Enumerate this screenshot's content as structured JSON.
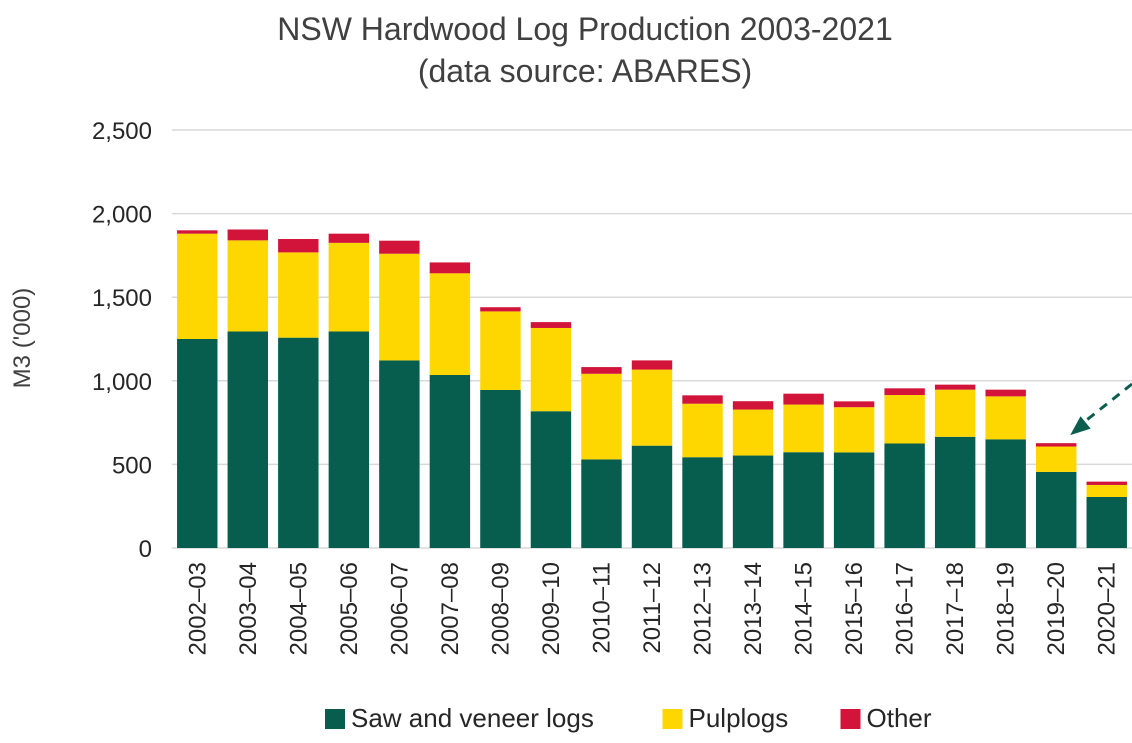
{
  "chart_data": {
    "type": "bar",
    "stacked": true,
    "title": "NSW Hardwood Log Production 2003-2021",
    "subtitle": "(data source: ABARES)",
    "xlabel": "",
    "ylabel": "M3 ('000)",
    "ylim": [
      0,
      2500
    ],
    "yticks": [
      0,
      500,
      1000,
      1500,
      2000,
      2500
    ],
    "ytick_labels": [
      "0",
      "500",
      "1,000",
      "1,500",
      "2,000",
      "2,500"
    ],
    "grid": true,
    "legend_position": "bottom",
    "categories": [
      "2002–03",
      "2003–04",
      "2004–05",
      "2005–06",
      "2006–07",
      "2007–08",
      "2008–09",
      "2009–10",
      "2010–11",
      "2011–12",
      "2012–13",
      "2013–14",
      "2014–15",
      "2015–16",
      "2016–17",
      "2017–18",
      "2018–19",
      "2019–20",
      "2020–21"
    ],
    "series": [
      {
        "name": "Saw and veneer logs",
        "color": "#075E4E",
        "values": [
          1250,
          1295,
          1258,
          1295,
          1122,
          1035,
          945,
          818,
          530,
          612,
          543,
          553,
          573,
          572,
          625,
          665,
          650,
          455,
          305
        ]
      },
      {
        "name": "Pulplogs",
        "color": "#FFD700",
        "values": [
          630,
          545,
          510,
          530,
          638,
          608,
          470,
          498,
          512,
          455,
          320,
          275,
          285,
          270,
          290,
          282,
          257,
          152,
          72
        ]
      },
      {
        "name": "Other",
        "color": "#D2143A",
        "values": [
          20,
          65,
          80,
          55,
          78,
          65,
          25,
          35,
          40,
          55,
          50,
          50,
          65,
          35,
          40,
          30,
          40,
          20,
          20
        ]
      }
    ],
    "annotation": {
      "type": "arrow",
      "target_category": "2019–20",
      "style": "dashed",
      "color": "#0B5E4E"
    }
  }
}
